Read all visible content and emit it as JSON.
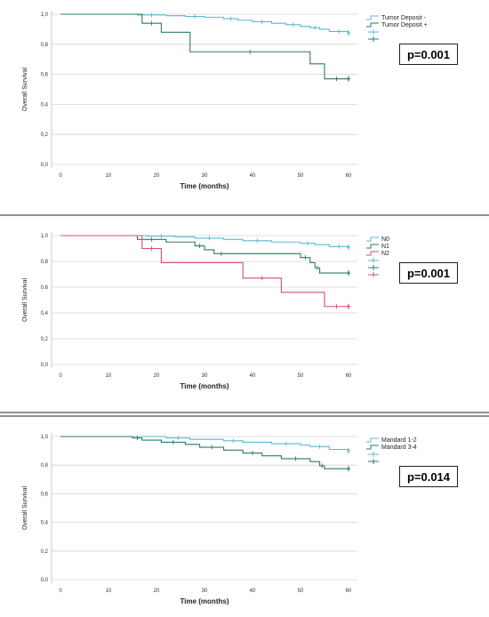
{
  "colors": {
    "c0": "#5bb8d6",
    "c1": "#2e7a68",
    "c2": "#d94f6b"
  },
  "chart_data": [
    {
      "type": "line",
      "xlabel": "Time (months)",
      "ylabel": "Overall Survival",
      "xlim": [
        0,
        60
      ],
      "ylim": [
        0,
        1
      ],
      "xticks": [
        "0",
        "10",
        "20",
        "30",
        "40",
        "50",
        "60"
      ],
      "yticks": [
        "0,0",
        "0,2",
        "0,4",
        "0,6",
        "0,8",
        "1,0"
      ],
      "annotation": "p=0.001",
      "series": [
        {
          "name": "Tumor Deposit -",
          "color": "c0",
          "x": [
            0,
            16,
            22,
            26,
            30,
            34,
            37,
            40,
            44,
            47,
            50,
            52,
            54,
            56,
            60
          ],
          "y": [
            1.0,
            0.995,
            0.99,
            0.985,
            0.98,
            0.97,
            0.96,
            0.95,
            0.94,
            0.93,
            0.92,
            0.91,
            0.9,
            0.885,
            0.875
          ]
        },
        {
          "name": "Tumor Deposit +",
          "color": "c1",
          "x": [
            0,
            17,
            21,
            27,
            52,
            55,
            60
          ],
          "y": [
            1.0,
            0.94,
            0.88,
            0.75,
            0.67,
            0.57,
            0.57
          ]
        }
      ]
    },
    {
      "type": "line",
      "xlabel": "Time (months)",
      "ylabel": "Overall Survival",
      "xlim": [
        0,
        60
      ],
      "ylim": [
        0,
        1
      ],
      "xticks": [
        "0",
        "10",
        "20",
        "30",
        "40",
        "50",
        "60"
      ],
      "yticks": [
        "0,0",
        "0,2",
        "0,4",
        "0,6",
        "0,8",
        "1,0"
      ],
      "annotation": "p=0.001",
      "series": [
        {
          "name": "N0",
          "color": "c0",
          "x": [
            0,
            18,
            24,
            28,
            34,
            38,
            44,
            50,
            53,
            56,
            60
          ],
          "y": [
            1.0,
            0.995,
            0.99,
            0.98,
            0.97,
            0.96,
            0.95,
            0.94,
            0.93,
            0.915,
            0.91
          ]
        },
        {
          "name": "N1",
          "color": "c1",
          "x": [
            0,
            16,
            22,
            28,
            30,
            32,
            35,
            50,
            52,
            53,
            54,
            60
          ],
          "y": [
            1.0,
            0.97,
            0.95,
            0.92,
            0.89,
            0.86,
            0.86,
            0.83,
            0.79,
            0.75,
            0.71,
            0.71
          ]
        },
        {
          "name": "N2",
          "color": "c2",
          "x": [
            0,
            17,
            21,
            38,
            46,
            55,
            60
          ],
          "y": [
            1.0,
            0.9,
            0.79,
            0.67,
            0.56,
            0.45,
            0.45
          ]
        }
      ]
    },
    {
      "type": "line",
      "xlabel": "Time (months)",
      "ylabel": "Overall Survival",
      "xlim": [
        0,
        60
      ],
      "ylim": [
        0,
        1
      ],
      "xticks": [
        "0",
        "10",
        "20",
        "30",
        "40",
        "50",
        "60"
      ],
      "yticks": [
        "0,0",
        "0,2",
        "0,4",
        "0,6",
        "0,8",
        "1,0"
      ],
      "annotation": "p=0.014",
      "series": [
        {
          "name": "Mandard 1-2",
          "color": "c0",
          "x": [
            0,
            22,
            27,
            34,
            38,
            44,
            50,
            52,
            56,
            60
          ],
          "y": [
            1.0,
            0.99,
            0.98,
            0.97,
            0.96,
            0.95,
            0.94,
            0.93,
            0.91,
            0.9
          ]
        },
        {
          "name": "Mandard 3-4",
          "color": "c1",
          "x": [
            0,
            15,
            17,
            21,
            26,
            29,
            34,
            38,
            42,
            46,
            52,
            54,
            55,
            60
          ],
          "y": [
            1.0,
            0.99,
            0.975,
            0.96,
            0.945,
            0.925,
            0.905,
            0.885,
            0.865,
            0.845,
            0.825,
            0.795,
            0.775,
            0.775
          ]
        }
      ]
    }
  ]
}
